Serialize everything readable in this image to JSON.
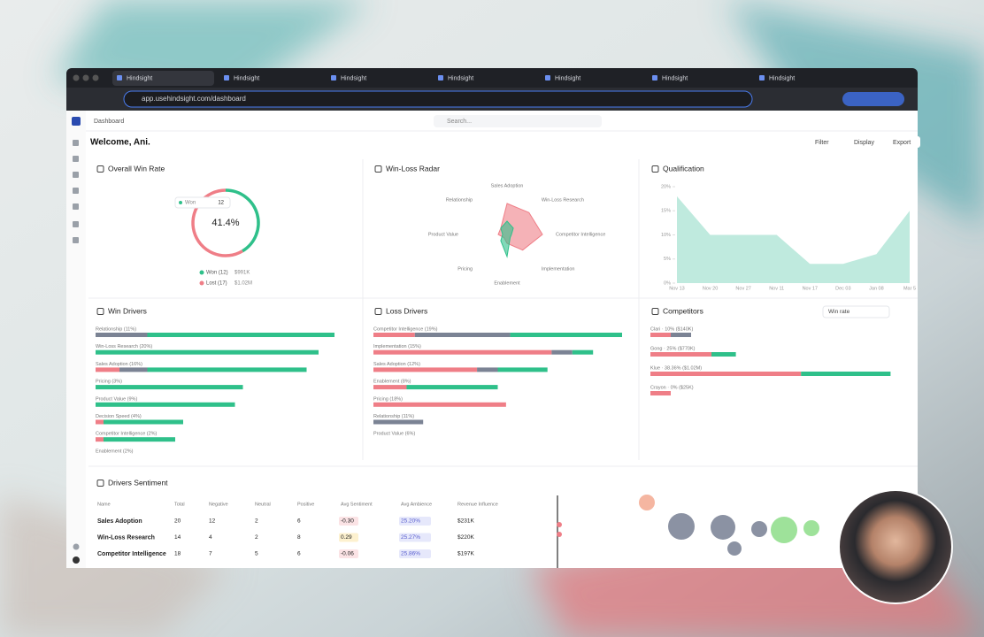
{
  "browser": {
    "tabs": [
      "Hindsight",
      "Hindsight",
      "Hindsight",
      "Hindsight",
      "Hindsight",
      "Hindsight",
      "Hindsight"
    ],
    "url": "app.usehindsight.com/dashboard"
  },
  "header": {
    "breadcrumb": "Dashboard",
    "search": "Search...",
    "welcome": "Welcome, Ani.",
    "actions": [
      "Filter",
      "Display",
      "Export"
    ]
  },
  "chart_data": [
    {
      "type": "donut",
      "title": "Overall Win Rate",
      "categories": [
        "Won (12)",
        "Lost (17)"
      ],
      "values": [
        41.4,
        58.6
      ],
      "colors": [
        "#2fc08a",
        "#ef7e87"
      ],
      "amounts": [
        "$991K",
        "$1.02M"
      ],
      "center_label": "41.4%",
      "tooltip": {
        "label": "Won",
        "value": 12
      }
    },
    {
      "type": "radar",
      "title": "Win-Loss Radar",
      "categories": [
        "Sales Adoption",
        "Win-Loss Research",
        "Competitor Intelligence",
        "Implementation",
        "Enablement",
        "Pricing",
        "Product Value",
        "Relationship"
      ],
      "rlim": [
        0,
        10
      ],
      "series": [
        {
          "color": "#ef7e87",
          "values": [
            7,
            7,
            8,
            5,
            2,
            1,
            2,
            2
          ]
        },
        {
          "color": "#2fc08a",
          "values": [
            3,
            2,
            1,
            1,
            5,
            2,
            1,
            2
          ]
        }
      ]
    },
    {
      "type": "area",
      "title": "Qualification",
      "categories": [
        "Nov 13",
        "Nov 20",
        "Nov 27",
        "Nov 11",
        "Nov 17",
        "Dec 03",
        "Jan 08",
        "Mar 5"
      ],
      "values": [
        18,
        10,
        10,
        10,
        4,
        4,
        6,
        15
      ],
      "color": "#bfeade",
      "ylim": [
        0,
        20
      ],
      "yticks": [
        {
          "value": 0,
          "label": "0%"
        },
        {
          "value": 5,
          "label": "5%"
        },
        {
          "value": 10,
          "label": "10%"
        },
        {
          "value": 15,
          "label": "15%"
        },
        {
          "value": 20,
          "label": "20%"
        }
      ]
    },
    {
      "type": "hbar-stack",
      "title": "Win Drivers",
      "categories": [
        "Relationship (11%)",
        "Win-Loss Research (20%)",
        "Sales Adoption (16%)",
        "Pricing (3%)",
        "Product Value (9%)",
        "Decision Speed (4%)",
        "Competitor Intelligence (2%)",
        "Enablement (2%)"
      ],
      "xlim": [
        0,
        60
      ],
      "series": [
        {
          "color": "#ef7e87",
          "values": [
            0,
            0,
            6,
            0,
            0,
            2,
            2,
            0
          ]
        },
        {
          "color": "#7b8394",
          "values": [
            13,
            0,
            7,
            0,
            0,
            0,
            0,
            0
          ]
        },
        {
          "color": "#2fc08a",
          "values": [
            47,
            56,
            40,
            37,
            35,
            20,
            18,
            0
          ]
        }
      ]
    },
    {
      "type": "hbar-stack",
      "title": "Loss Drivers",
      "categories": [
        "Competitor Intelligence (19%)",
        "Implementation (15%)",
        "Sales Adoption (12%)",
        "Enablement (8%)",
        "Pricing (18%)",
        "Relationship (11%)",
        "Product Value (6%)"
      ],
      "xlim": [
        0,
        60
      ],
      "series": [
        {
          "color": "#ef7e87",
          "values": [
            10,
            43,
            25,
            8,
            32,
            0,
            0
          ]
        },
        {
          "color": "#7b8394",
          "values": [
            23,
            5,
            5,
            0,
            0,
            12,
            0
          ]
        },
        {
          "color": "#2fc08a",
          "values": [
            27,
            5,
            12,
            22,
            0,
            0,
            0
          ]
        }
      ]
    },
    {
      "type": "hbar-stack",
      "title": "Competitors",
      "control": "Win rate",
      "categories": [
        "Clari · 10% ($140K)",
        "Gong · 25% ($770K)",
        "Klue · 38.36% ($1.02M)",
        "Crayon · 0% ($25K)"
      ],
      "xlim": [
        0,
        60
      ],
      "series": [
        {
          "color": "#ef7e87",
          "values": [
            5,
            15,
            37,
            5
          ]
        },
        {
          "color": "#7b8394",
          "values": [
            5,
            0,
            0,
            0
          ]
        },
        {
          "color": "#2fc08a",
          "values": [
            0,
            6,
            22,
            0
          ]
        }
      ]
    }
  ],
  "table": {
    "title": "Drivers Sentiment",
    "columns": [
      "Name",
      "Total",
      "Negative",
      "Neutral",
      "Positive",
      "Avg Sentiment",
      "Avg Ambience",
      "Revenue Influence"
    ],
    "rows": [
      [
        "Sales Adoption",
        20,
        12,
        2,
        6,
        "-0.30",
        "25.20%",
        "$231K"
      ],
      [
        "Win-Loss Research",
        14,
        4,
        2,
        8,
        "0.29",
        "25.27%",
        "$220K"
      ],
      [
        "Competitor Intelligence",
        18,
        7,
        5,
        6,
        "-0.06",
        "25.86%",
        "$197K"
      ]
    ]
  }
}
